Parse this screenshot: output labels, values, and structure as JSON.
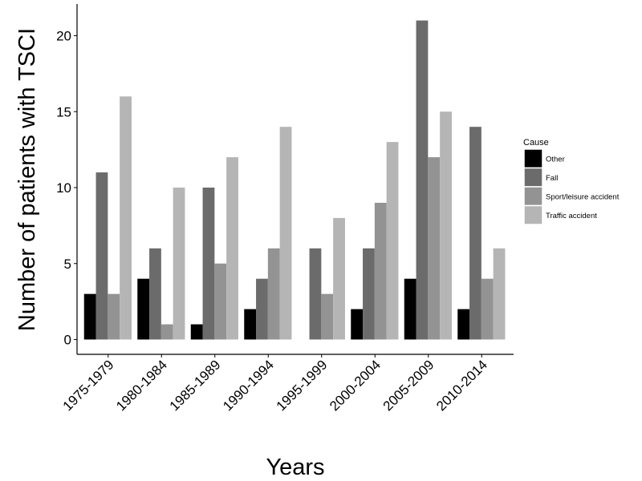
{
  "chart_data": {
    "type": "bar",
    "title": "",
    "xlabel": "Years",
    "ylabel": "Number of patients with TSCI",
    "categories": [
      "1975-1979",
      "1980-1984",
      "1985-1989",
      "1990-1994",
      "1995-1999",
      "2000-2004",
      "2005-2009",
      "2010-2014"
    ],
    "series": [
      {
        "name": "Other",
        "color": "#000000",
        "values": [
          3,
          4,
          1,
          2,
          0,
          2,
          4,
          2
        ]
      },
      {
        "name": "Fall",
        "color": "#6b6b6b",
        "values": [
          11,
          6,
          10,
          4,
          6,
          6,
          21,
          14
        ]
      },
      {
        "name": "Sport/leisure accident",
        "color": "#939393",
        "values": [
          3,
          1,
          5,
          6,
          3,
          9,
          12,
          4
        ]
      },
      {
        "name": "Traffic accident",
        "color": "#b5b5b5",
        "values": [
          16,
          10,
          12,
          14,
          8,
          13,
          15,
          6
        ]
      }
    ],
    "ylim": [
      0,
      22.2
    ],
    "yticks": [
      0,
      5,
      10,
      15,
      20
    ],
    "grid": false,
    "legend": {
      "title": "Cause",
      "position": "right"
    }
  }
}
